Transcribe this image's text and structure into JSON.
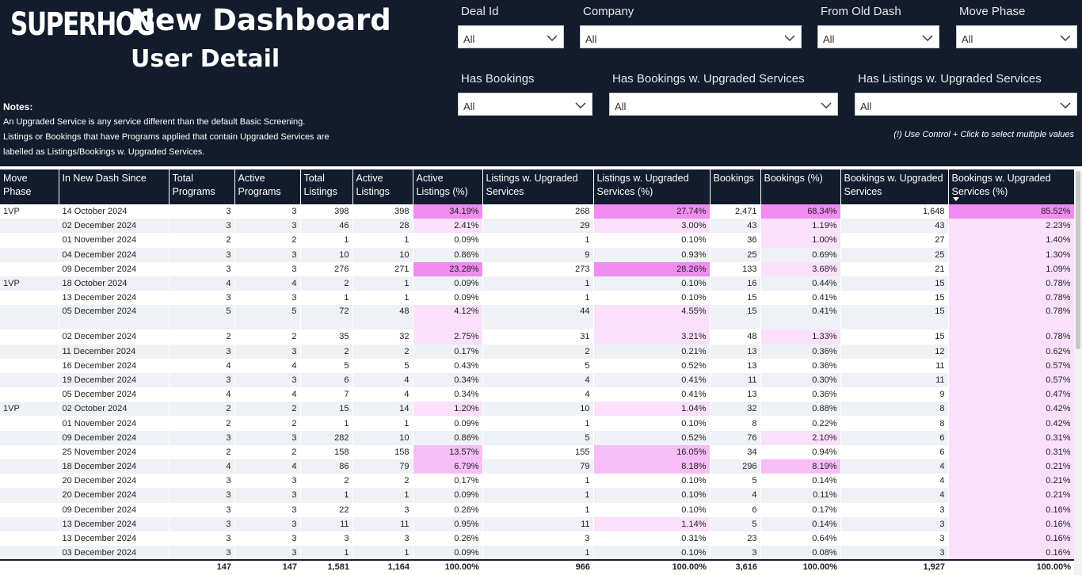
{
  "header": {
    "logo": "SUPERHOG",
    "title": "New Dashboard",
    "subtitle": "User Detail",
    "notes_heading": "Notes:",
    "notes_lines": [
      "An Upgraded Service is any service different than the default Basic Screening.",
      "Listings or Bookings that have Programs applied that contain Upgraded Services are",
      "labelled as Listings/Bookings w. Upgraded Services."
    ],
    "hint": "(!) Use Control + Click to select multiple values"
  },
  "filters": [
    {
      "label": "Deal Id",
      "value": "All"
    },
    {
      "label": "Company",
      "value": "All"
    },
    {
      "label": "From Old Dash",
      "value": "All"
    },
    {
      "label": "Move Phase",
      "value": "All"
    },
    {
      "label": "Has Bookings",
      "value": "All"
    },
    {
      "label": "Has Bookings w. Upgraded Services",
      "value": "All"
    },
    {
      "label": "Has Listings w. Upgraded Services",
      "value": "All"
    }
  ],
  "colors": {
    "header_bg": "#121c2c",
    "highlight_strong": "#f08cf0",
    "highlight_mid": "#f6bdf6",
    "highlight_light": "#fbe0fb"
  },
  "table": {
    "columns": [
      "Move Phase",
      "In New Dash Since",
      "Total Programs",
      "Active Programs",
      "Total Listings",
      "Active Listings",
      "Active Listings (%)",
      "Listings w. Upgraded Services",
      "Listings w. Upgraded Services (%)",
      "Bookings",
      "Bookings (%)",
      "Bookings w. Upgraded Services",
      "Bookings w. Upgraded Services (%)"
    ],
    "sorted_column": "Bookings w. Upgraded Services (%)",
    "rows": [
      [
        "1VP",
        "14 October 2024",
        "3",
        "3",
        "398",
        "398",
        "34.19%",
        "268",
        "27.74%",
        "2,471",
        "68.34%",
        "1,648",
        "85.52%"
      ],
      [
        "",
        "02 December 2024",
        "3",
        "3",
        "46",
        "28",
        "2.41%",
        "29",
        "3.00%",
        "43",
        "1.19%",
        "43",
        "2.23%"
      ],
      [
        "",
        "01 November 2024",
        "2",
        "2",
        "1",
        "1",
        "0.09%",
        "1",
        "0.10%",
        "36",
        "1.00%",
        "27",
        "1.40%"
      ],
      [
        "",
        "04 December 2024",
        "3",
        "3",
        "10",
        "10",
        "0.86%",
        "9",
        "0.93%",
        "25",
        "0.69%",
        "25",
        "1.30%"
      ],
      [
        "",
        "09 December 2024",
        "3",
        "3",
        "276",
        "271",
        "23.28%",
        "273",
        "28.26%",
        "133",
        "3.68%",
        "21",
        "1.09%"
      ],
      [
        "1VP",
        "18 October 2024",
        "4",
        "4",
        "2",
        "1",
        "0.09%",
        "1",
        "0.10%",
        "16",
        "0.44%",
        "15",
        "0.78%"
      ],
      [
        "",
        "13 December 2024",
        "3",
        "3",
        "1",
        "1",
        "0.09%",
        "1",
        "0.10%",
        "15",
        "0.41%",
        "15",
        "0.78%"
      ],
      [
        "",
        "05 December 2024",
        "5",
        "5",
        "72",
        "48",
        "4.12%",
        "44",
        "4.55%",
        "15",
        "0.41%",
        "15",
        "0.78%"
      ],
      [
        "",
        "02 December 2024",
        "2",
        "2",
        "35",
        "32",
        "2.75%",
        "31",
        "3.21%",
        "48",
        "1.33%",
        "15",
        "0.78%"
      ],
      [
        "",
        "11 December 2024",
        "3",
        "3",
        "2",
        "2",
        "0.17%",
        "2",
        "0.21%",
        "13",
        "0.36%",
        "12",
        "0.62%"
      ],
      [
        "",
        "16 December 2024",
        "4",
        "4",
        "5",
        "5",
        "0.43%",
        "5",
        "0.52%",
        "13",
        "0.36%",
        "11",
        "0.57%"
      ],
      [
        "",
        "19 December 2024",
        "3",
        "3",
        "6",
        "4",
        "0.34%",
        "4",
        "0.41%",
        "11",
        "0.30%",
        "11",
        "0.57%"
      ],
      [
        "",
        "05 December 2024",
        "4",
        "4",
        "7",
        "4",
        "0.34%",
        "4",
        "0.41%",
        "13",
        "0.36%",
        "9",
        "0.47%"
      ],
      [
        "1VP",
        "02 October 2024",
        "2",
        "2",
        "15",
        "14",
        "1.20%",
        "10",
        "1.04%",
        "32",
        "0.88%",
        "8",
        "0.42%"
      ],
      [
        "",
        "01 November 2024",
        "2",
        "2",
        "1",
        "1",
        "0.09%",
        "1",
        "0.10%",
        "8",
        "0.22%",
        "8",
        "0.42%"
      ],
      [
        "",
        "09 December 2024",
        "3",
        "3",
        "282",
        "10",
        "0.86%",
        "5",
        "0.52%",
        "76",
        "2.10%",
        "6",
        "0.31%"
      ],
      [
        "",
        "25 November 2024",
        "2",
        "2",
        "158",
        "158",
        "13.57%",
        "155",
        "16.05%",
        "34",
        "0.94%",
        "6",
        "0.31%"
      ],
      [
        "",
        "18 December 2024",
        "4",
        "4",
        "86",
        "79",
        "6.79%",
        "79",
        "8.18%",
        "296",
        "8.19%",
        "4",
        "0.21%"
      ],
      [
        "",
        "20 December 2024",
        "3",
        "3",
        "2",
        "2",
        "0.17%",
        "1",
        "0.10%",
        "5",
        "0.14%",
        "4",
        "0.21%"
      ],
      [
        "",
        "20 December 2024",
        "3",
        "3",
        "1",
        "1",
        "0.09%",
        "1",
        "0.10%",
        "4",
        "0.11%",
        "4",
        "0.21%"
      ],
      [
        "",
        "09 December 2024",
        "3",
        "3",
        "22",
        "3",
        "0.26%",
        "1",
        "0.10%",
        "6",
        "0.17%",
        "3",
        "0.16%"
      ],
      [
        "",
        "13 December 2024",
        "3",
        "3",
        "11",
        "11",
        "0.95%",
        "11",
        "1.14%",
        "5",
        "0.14%",
        "3",
        "0.16%"
      ],
      [
        "",
        "13 December 2024",
        "3",
        "3",
        "3",
        "3",
        "0.26%",
        "3",
        "0.31%",
        "23",
        "0.64%",
        "3",
        "0.16%"
      ],
      [
        "",
        "03 December 2024",
        "3",
        "3",
        "1",
        "1",
        "0.09%",
        "1",
        "0.10%",
        "3",
        "0.08%",
        "3",
        "0.16%"
      ]
    ],
    "totals": [
      "",
      "",
      "147",
      "147",
      "1,581",
      "1,164",
      "100.00%",
      "966",
      "100.00%",
      "3,616",
      "100.00%",
      "1,927",
      "100.00%"
    ]
  }
}
